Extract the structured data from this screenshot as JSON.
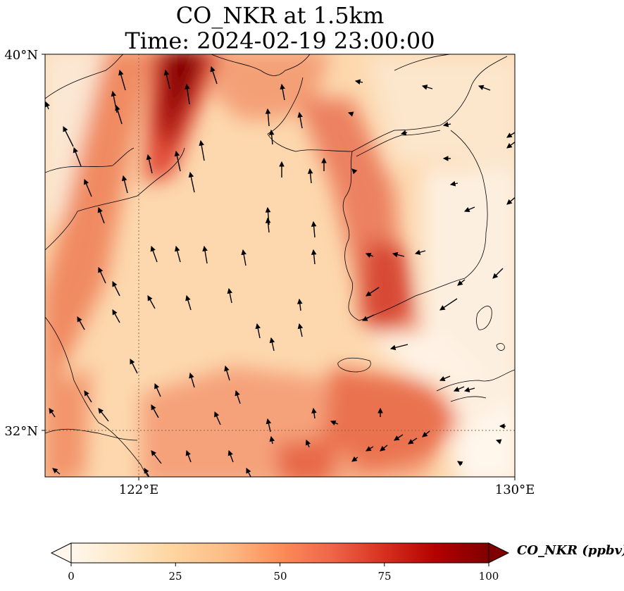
{
  "title": {
    "line1": "CO_NKR at 1.5km",
    "line2": "Time: 2024-02-19 23:00:00"
  },
  "map": {
    "variable": "CO_NKR",
    "level": "1.5km",
    "time": "2024-02-19 23:00:00",
    "lon_range": [
      119.8,
      130.0
    ],
    "lat_range": [
      31.0,
      40.0
    ],
    "lat_ticks": [
      {
        "value": 40,
        "label": "40°N"
      },
      {
        "value": 32,
        "label": "32°N"
      }
    ],
    "lon_ticks": [
      {
        "value": 122,
        "label": "122°E"
      },
      {
        "value": 130,
        "label": "130°E"
      }
    ],
    "gridlines_dotted": true,
    "field": "CO concentration shaded, highest (~90-100 ppbv) over Bohai/Liaodong region near 122-124°E 38-40°N; elevated band along western Korea coast and south of Korea; low values over Korean peninsula and east",
    "wind_vectors": true,
    "coastlines": true
  },
  "colorbar": {
    "label": "CO_NKR (ppbv)",
    "min": 0,
    "max": 100,
    "extend": "both",
    "ticks": [
      {
        "value": 0,
        "label": "0"
      },
      {
        "value": 25,
        "label": "25"
      },
      {
        "value": 50,
        "label": "50"
      },
      {
        "value": 75,
        "label": "75"
      },
      {
        "value": 100,
        "label": "100"
      }
    ],
    "colors": [
      "#fff7ec",
      "#fee8c8",
      "#fdd49e",
      "#fdbb84",
      "#fc8d59",
      "#ef6548",
      "#d7301f",
      "#b30000",
      "#7f0000"
    ]
  }
}
